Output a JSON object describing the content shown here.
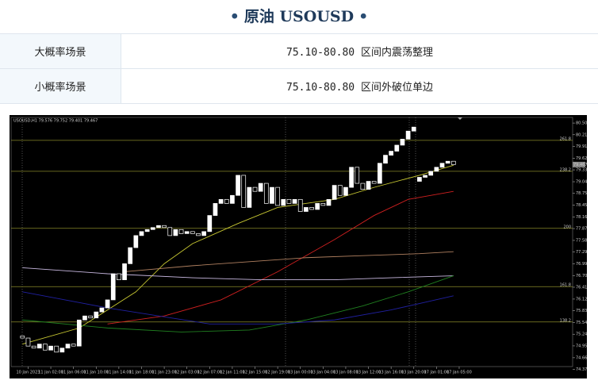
{
  "header": {
    "title": "原油 USOUSD"
  },
  "table": {
    "rows": [
      [
        "大概率场景",
        "75.10-80.80 区间内震荡整理"
      ],
      [
        "小概率场景",
        "75.10-80.80 区间外破位单边"
      ]
    ]
  },
  "chart_data": {
    "type": "candlestick",
    "title": "USOUSD,H1 79.576 79.752 79.401 79.467",
    "up_color": "#ffffff",
    "down_color": "#000000",
    "edge_color": "#ffffff",
    "open": [
      75.2,
      75.15,
      74.95,
      74.9,
      75.0,
      74.85,
      74.95,
      74.8,
      74.9,
      75.0,
      74.95,
      75.6,
      75.7,
      75.65,
      75.8,
      75.9,
      76.1,
      76.75,
      76.6,
      77.0,
      77.4,
      77.7,
      77.8,
      77.85,
      77.9,
      77.95,
      77.9,
      77.7,
      77.85,
      77.75,
      77.8,
      77.75,
      77.7,
      77.8,
      78.2,
      78.5,
      78.6,
      78.5,
      78.7,
      79.2,
      78.4,
      78.9,
      78.8,
      79.0,
      78.5,
      78.9,
      78.45,
      78.6,
      78.5,
      78.6,
      78.3,
      78.4,
      78.35,
      78.5,
      78.45,
      78.6,
      78.95,
      78.7,
      78.9,
      79.4,
      79.0,
      78.85,
      79.05,
      79.0,
      79.5,
      79.7,
      79.8,
      79.95,
      80.1,
      80.3,
      79.05,
      79.15,
      79.2,
      79.3,
      79.4,
      79.5,
      79.55
    ],
    "close": [
      75.15,
      74.95,
      74.9,
      75.0,
      74.85,
      74.95,
      74.8,
      74.9,
      75.0,
      74.95,
      75.6,
      75.7,
      75.65,
      75.8,
      75.9,
      76.1,
      76.75,
      76.6,
      77.0,
      77.4,
      77.7,
      77.8,
      77.85,
      77.9,
      77.95,
      77.9,
      77.7,
      77.85,
      77.75,
      77.8,
      77.75,
      77.7,
      77.8,
      78.2,
      78.5,
      78.6,
      78.5,
      78.7,
      79.2,
      78.4,
      78.9,
      78.8,
      79.0,
      78.5,
      78.9,
      78.45,
      78.6,
      78.5,
      78.6,
      78.3,
      78.4,
      78.35,
      78.5,
      78.45,
      78.6,
      78.95,
      78.7,
      78.9,
      79.4,
      79.0,
      78.85,
      79.05,
      79.0,
      79.5,
      79.7,
      79.8,
      79.95,
      80.1,
      80.3,
      80.4,
      79.15,
      79.2,
      79.3,
      79.4,
      79.5,
      79.55,
      79.467
    ],
    "series": [
      {
        "color": "#c8c832",
        "x": [
          0,
          10,
          20,
          25,
          30,
          38,
          45,
          55,
          62,
          70,
          76
        ],
        "values": [
          75.0,
          75.4,
          76.3,
          77.0,
          77.5,
          78.0,
          78.4,
          78.6,
          78.9,
          79.2,
          79.45
        ]
      },
      {
        "color": "#d02020",
        "x": [
          15,
          25,
          35,
          45,
          55,
          62,
          68,
          76
        ],
        "values": [
          75.5,
          75.7,
          76.1,
          76.8,
          77.6,
          78.2,
          78.6,
          78.8
        ]
      },
      {
        "color": "#b08060",
        "x": [
          18,
          30,
          40,
          50,
          60,
          70,
          76
        ],
        "values": [
          76.8,
          76.95,
          77.05,
          77.15,
          77.2,
          77.25,
          77.3
        ]
      },
      {
        "color": "#c8b8e0",
        "x": [
          0,
          15,
          30,
          42,
          55,
          65,
          76
        ],
        "values": [
          76.9,
          76.75,
          76.65,
          76.6,
          76.6,
          76.65,
          76.7
        ]
      },
      {
        "color": "#208020",
        "x": [
          0,
          15,
          28,
          40,
          50,
          60,
          68,
          76
        ],
        "values": [
          75.6,
          75.4,
          75.3,
          75.35,
          75.6,
          75.95,
          76.3,
          76.7
        ]
      },
      {
        "color": "#2020a0",
        "x": [
          0,
          15,
          33,
          45,
          55,
          65,
          76
        ],
        "values": [
          76.3,
          75.9,
          75.5,
          75.5,
          75.6,
          75.85,
          76.2
        ]
      }
    ],
    "levels": [
      {
        "value": 80.07,
        "label": "261.8"
      },
      {
        "value": 79.3,
        "label": "238.2"
      },
      {
        "value": 77.88,
        "label": "200"
      },
      {
        "value": 76.43,
        "label": "161.8"
      },
      {
        "value": 75.55,
        "label": "138.2"
      }
    ],
    "level_color": "#8a8a2a",
    "last_price": {
      "value": 79.467,
      "label": "79.467"
    },
    "ylim": [
      74.44,
      80.64
    ],
    "yticks": [
      {
        "value": 80.5,
        "label": "80.500"
      },
      {
        "value": 80.21,
        "label": "80.210"
      },
      79.915,
      79.625,
      79.335,
      {
        "value": 79.04,
        "label": "79.040"
      },
      {
        "value": 78.75,
        "label": "78.750"
      },
      78.455,
      78.165,
      77.875,
      {
        "value": 77.58,
        "label": "77.580"
      },
      {
        "value": 77.29,
        "label": "77.290"
      },
      76.995,
      76.705,
      76.415,
      {
        "value": 76.12,
        "label": "76.120"
      },
      {
        "value": 75.83,
        "label": "75.830"
      },
      {
        "value": 75.54,
        "label": "75.540"
      },
      75.245,
      74.955,
      {
        "value": 74.66,
        "label": "74.660"
      },
      {
        "value": 74.37,
        "label": "74.370"
      }
    ],
    "xlim": [
      -2,
      97
    ],
    "xticks": [
      {
        "value": 1,
        "label": "10 Jan 2023"
      },
      {
        "value": 5,
        "label": "11 Jan 02:00"
      },
      {
        "value": 9,
        "label": "11 Jan 06:00"
      },
      {
        "value": 13,
        "label": "11 Jan 10:00"
      },
      {
        "value": 17,
        "label": "11 Jan 14:00"
      },
      {
        "value": 21,
        "label": "11 Jan 18:00"
      },
      {
        "value": 25,
        "label": "11 Jan 23:00"
      },
      {
        "value": 29,
        "label": "12 Jan 03:00"
      },
      {
        "value": 33,
        "label": "12 Jan 07:00"
      },
      {
        "value": 37,
        "label": "12 Jan 11:00"
      },
      {
        "value": 41,
        "label": "12 Jan 15:00"
      },
      {
        "value": 45,
        "label": "12 Jan 19:00"
      },
      {
        "value": 49,
        "label": "13 Jan 00:00"
      },
      {
        "value": 53,
        "label": "13 Jan 04:00"
      },
      {
        "value": 57,
        "label": "13 Jan 08:00"
      },
      {
        "value": 61,
        "label": "13 Jan 12:00"
      },
      {
        "value": 65,
        "label": "13 Jan 16:00"
      },
      {
        "value": 69,
        "label": "13 Jan 20:00"
      },
      {
        "value": 73,
        "label": "17 Jan 01:00"
      },
      {
        "value": 77,
        "label": "17 Jan 05:00"
      }
    ]
  }
}
